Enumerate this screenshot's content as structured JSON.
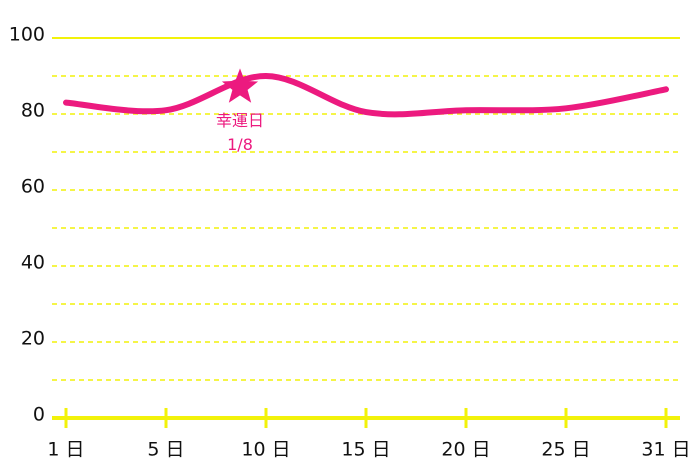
{
  "chart_data": {
    "type": "line",
    "categories": [
      "1 日",
      "5 日",
      "10 日",
      "15 日",
      "20 日",
      "25 日",
      "31 日"
    ],
    "series": [
      {
        "color": "#ec1a7f",
        "values": [
          83,
          81,
          90,
          80.5,
          81,
          81.5,
          86.5
        ]
      }
    ],
    "ylim": [
      0,
      100
    ],
    "yticks": [
      0,
      20,
      40,
      60,
      80,
      100
    ],
    "minor_yticks": [
      10,
      20,
      30,
      40,
      50,
      60,
      70,
      80,
      90
    ],
    "grid": true,
    "grid_color": "#f2f20a",
    "annotation": {
      "label": "幸運日",
      "date": "1/8",
      "value": 87,
      "color": "#ec1a7f"
    }
  }
}
